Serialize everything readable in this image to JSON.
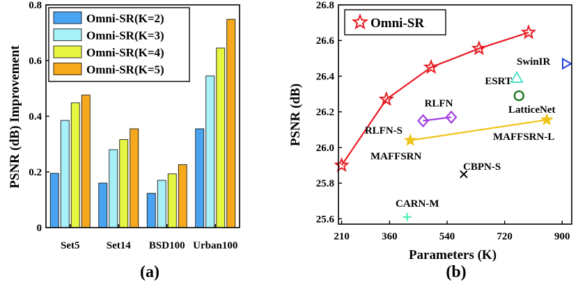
{
  "chart_data": [
    {
      "type": "bar",
      "panel_label": "(a)",
      "ylabel": "PSNR (dB) Improvement",
      "xlabel": "",
      "ylim": [
        0,
        0.8
      ],
      "yticks": [
        "0",
        "0.2",
        "0.4",
        "0.6",
        "0.8"
      ],
      "categories": [
        "Set5",
        "Set14",
        "BSD100",
        "Urban100"
      ],
      "legend_position": "top-left",
      "series": [
        {
          "name": "Omni-SR(K=2)",
          "color": "#4aa3f0",
          "values": [
            0.195,
            0.16,
            0.123,
            0.355
          ]
        },
        {
          "name": "Omni-SR(K=3)",
          "color": "#a8f0f8",
          "values": [
            0.385,
            0.28,
            0.17,
            0.545
          ]
        },
        {
          "name": "Omni-SR(K=4)",
          "color": "#e6f542",
          "values": [
            0.448,
            0.316,
            0.193,
            0.645
          ]
        },
        {
          "name": "Omni-SR(K=5)",
          "color": "#f6a91d",
          "values": [
            0.476,
            0.355,
            0.226,
            0.748
          ]
        }
      ]
    },
    {
      "type": "scatter",
      "panel_label": "(b)",
      "xlabel": "Parameters (K)",
      "ylabel": "PSNR (dB)",
      "xlim": [
        200,
        930
      ],
      "ylim": [
        25.57,
        26.8
      ],
      "xticks": [
        210,
        360,
        540,
        720,
        900
      ],
      "yticks": [
        25.6,
        25.8,
        26.0,
        26.2,
        26.4,
        26.6,
        26.8
      ],
      "legend": {
        "label": "Omni-SR",
        "position": "top-left"
      },
      "series": [
        {
          "name": "Omni-SR",
          "marker": "star",
          "color": "#e81c24",
          "line": true,
          "x": [
            210,
            350,
            490,
            640,
            795
          ],
          "y": [
            25.9,
            26.27,
            26.45,
            26.555,
            26.645
          ]
        },
        {
          "name": "RLFN",
          "marker": "diamond",
          "color": "#a040e0",
          "line": true,
          "x": [
            465,
            553
          ],
          "y": [
            26.15,
            26.17
          ]
        },
        {
          "name": "MAFFSRN",
          "marker": "star",
          "color": "#f0c418",
          "line": true,
          "x": [
            425,
            852
          ],
          "y": [
            26.04,
            26.155
          ]
        }
      ],
      "points": [
        {
          "label": "SwinIR",
          "x": 930,
          "y": 26.47,
          "marker": "triangle-right",
          "color": "#2040e0"
        },
        {
          "label": "ESRT",
          "x": 758,
          "y": 26.39,
          "marker": "triangle",
          "color": "#50e0c8"
        },
        {
          "label": "LatticeNet",
          "x": 765,
          "y": 26.29,
          "marker": "circle",
          "color": "#1a7a1a"
        },
        {
          "label": "CBPN-S",
          "x": 592,
          "y": 25.85,
          "marker": "x",
          "color": "#000000"
        },
        {
          "label": "CARN-M",
          "x": 415,
          "y": 25.61,
          "marker": "plus",
          "color": "#40f0a8"
        }
      ],
      "annotations": [
        "RLFN",
        "RLFN-S",
        "MAFFSRN",
        "MAFFSRN-L",
        "ESRT",
        "SwinIR",
        "LatticeNet",
        "CBPN-S",
        "CARN-M"
      ]
    }
  ]
}
